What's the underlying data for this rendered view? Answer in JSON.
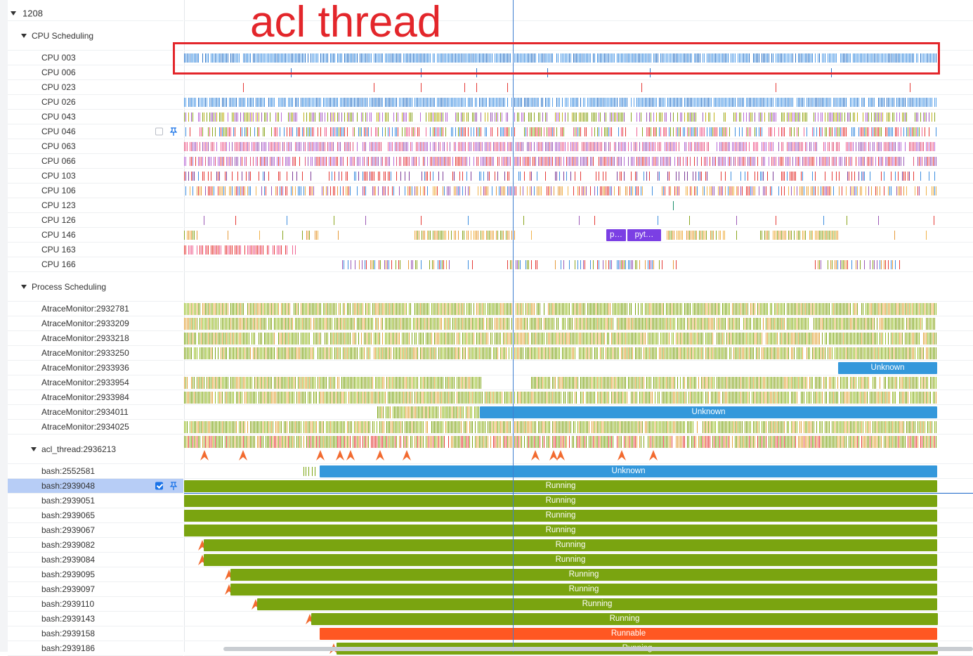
{
  "annotation": {
    "text": "acl thread",
    "color": "#e3262b"
  },
  "colors": {
    "running": "#7aa410",
    "unknown": "#3498db",
    "runnable": "#ff5722",
    "cursor": "#3f7fd0",
    "flag": "#f26a2f"
  },
  "process": {
    "name": "1208"
  },
  "cpu_section": {
    "title": "CPU Scheduling"
  },
  "cpu_rows": [
    {
      "label": "CPU 003",
      "palette": [
        "#3d8ee0",
        "#2b73c7",
        "#5aa2ea"
      ],
      "density": 0.9,
      "ranges": [
        [
          0,
          0.955
        ]
      ]
    },
    {
      "label": "CPU 006",
      "palette": [
        "#2b73c7"
      ],
      "density": 0.0,
      "ranges": [],
      "ticks": [
        0.135,
        0.3,
        0.37,
        0.46,
        0.59,
        0.82
      ]
    },
    {
      "label": "CPU 023",
      "palette": [
        "#e53935"
      ],
      "density": 0.0,
      "ranges": [],
      "ticks": [
        0.075,
        0.24,
        0.3,
        0.355,
        0.37,
        0.41,
        0.58,
        0.75,
        0.92
      ]
    },
    {
      "label": "CPU 026",
      "palette": [
        "#3d8ee0",
        "#2b73c7",
        "#5aa2ea"
      ],
      "density": 0.85,
      "ranges": [
        [
          0,
          0.955
        ]
      ]
    },
    {
      "label": "CPU 043",
      "palette": [
        "#8aa51e",
        "#9b59b6",
        "#b86ad6",
        "#8aa51e",
        "#c0b21a"
      ],
      "density": 0.6,
      "ranges": [
        [
          0,
          0.955
        ]
      ]
    },
    {
      "label": "CPU 046",
      "palette": [
        "#e53935",
        "#f06292",
        "#8aa51e",
        "#3d8ee0"
      ],
      "density": 0.6,
      "ranges": [
        [
          0,
          0.955
        ]
      ],
      "checkbox": false,
      "pinned": true
    },
    {
      "label": "CPU 063",
      "palette": [
        "#b86ad6",
        "#e2557a",
        "#9b59b6",
        "#f06292"
      ],
      "density": 0.75,
      "ranges": [
        [
          0,
          0.955
        ]
      ]
    },
    {
      "label": "CPU 066",
      "palette": [
        "#b86ad6",
        "#e53935",
        "#9b59b6",
        "#e2557a"
      ],
      "density": 0.75,
      "ranges": [
        [
          0,
          0.955
        ]
      ]
    },
    {
      "label": "CPU 103",
      "palette": [
        "#e53935",
        "#7d3c98",
        "#3d8ee0",
        "#e53935"
      ],
      "density": 0.35,
      "ranges": [
        [
          0,
          0.955
        ]
      ]
    },
    {
      "label": "CPU 106",
      "palette": [
        "#e69a3a",
        "#f0b24a",
        "#9b59b6",
        "#3d8ee0",
        "#e53935"
      ],
      "density": 0.6,
      "ranges": [
        [
          0,
          0.955
        ]
      ]
    },
    {
      "label": "CPU 123",
      "palette": [
        "#1a8f6b"
      ],
      "density": 0.0,
      "ranges": [],
      "ticks": [
        0.62
      ]
    },
    {
      "label": "CPU 126",
      "palette": [
        "#9b59b6",
        "#e53935",
        "#3d8ee0",
        "#8aa51e"
      ],
      "density": 0.0,
      "ranges": [],
      "ticks": [
        0.025,
        0.065,
        0.13,
        0.19,
        0.23,
        0.3,
        0.36,
        0.43,
        0.5,
        0.52,
        0.6,
        0.64,
        0.7,
        0.75,
        0.81,
        0.84,
        0.88,
        0.95
      ]
    },
    {
      "label": "CPU 146",
      "palette": [
        "#e69a3a",
        "#f0b24a",
        "#8aa51e"
      ],
      "density": 0.75,
      "ranges": [
        [
          0,
          0.02
        ],
        [
          0.15,
          0.17
        ],
        [
          0.29,
          0.42
        ],
        [
          0.61,
          0.69
        ],
        [
          0.73,
          0.83
        ]
      ],
      "ticks": [
        0.055,
        0.095,
        0.125,
        0.195,
        0.44,
        0.7,
        0.9,
        0.94
      ],
      "blocks": [
        {
          "label": "p…",
          "start": 0.535,
          "end": 0.56,
          "color": "#7b3fe4"
        },
        {
          "label": "pyt…",
          "start": 0.562,
          "end": 0.605,
          "color": "#7b3fe4"
        }
      ]
    },
    {
      "label": "CPU 163",
      "palette": [
        "#e53935",
        "#f06292"
      ],
      "density": 0.7,
      "ranges": [
        [
          0,
          0.142
        ]
      ]
    },
    {
      "label": "CPU 166",
      "palette": [
        "#e53935",
        "#9b59b6",
        "#3d8ee0",
        "#8aa51e",
        "#e69a3a"
      ],
      "density": 0.55,
      "ranges": [
        [
          0.195,
          0.34
        ],
        [
          0.36,
          0.37
        ],
        [
          0.41,
          0.45
        ],
        [
          0.47,
          0.61
        ],
        [
          0.62,
          0.63
        ],
        [
          0.8,
          0.91
        ]
      ]
    }
  ],
  "process_section": {
    "title": "Process Scheduling"
  },
  "process_rows": [
    {
      "label": "AtraceMonitor:2932781",
      "type": "stripes",
      "ranges": [
        [
          0,
          0.955
        ]
      ]
    },
    {
      "label": "AtraceMonitor:2933209",
      "type": "stripes",
      "ranges": [
        [
          0,
          0.955
        ]
      ]
    },
    {
      "label": "AtraceMonitor:2933218",
      "type": "stripes",
      "ranges": [
        [
          0,
          0.955
        ]
      ]
    },
    {
      "label": "AtraceMonitor:2933250",
      "type": "stripes",
      "ranges": [
        [
          0,
          0.955
        ]
      ]
    },
    {
      "label": "AtraceMonitor:2933936",
      "type": "block",
      "state": "Unknown",
      "start": 0.829,
      "end": 0.955,
      "color": "#3498db"
    },
    {
      "label": "AtraceMonitor:2933954",
      "type": "stripes",
      "ranges": [
        [
          0,
          0.378
        ],
        [
          0.44,
          0.955
        ]
      ]
    },
    {
      "label": "AtraceMonitor:2933984",
      "type": "stripes",
      "ranges": [
        [
          0,
          0.955
        ]
      ]
    },
    {
      "label": "AtraceMonitor:2934011",
      "type": "stripes_block",
      "ranges": [
        [
          0.245,
          0.375
        ]
      ],
      "state": "Unknown",
      "start": 0.375,
      "end": 0.955,
      "color": "#3498db"
    },
    {
      "label": "AtraceMonitor:2934025",
      "type": "stripes",
      "ranges": [
        [
          0,
          0.955
        ]
      ]
    }
  ],
  "acl_thread": {
    "label": "acl_thread:2936213",
    "flags": [
      0.026,
      0.075,
      0.173,
      0.198,
      0.211,
      0.248,
      0.282,
      0.445,
      0.468,
      0.477,
      0.555,
      0.595
    ]
  },
  "thread_rows": [
    {
      "label": "bash:2552581",
      "state": "Unknown",
      "start": 0.172,
      "end": 0.955,
      "color": "#3498db",
      "pre_ticks": [
        0.151,
        0.154,
        0.158,
        0.162,
        0.166
      ]
    },
    {
      "label": "bash:2939048",
      "state": "Running",
      "start": 0.0,
      "end": 0.955,
      "color": "#7aa410",
      "selected": true,
      "checkbox": true,
      "pinned": true
    },
    {
      "label": "bash:2939051",
      "state": "Running",
      "start": 0.0,
      "end": 0.955,
      "color": "#7aa410"
    },
    {
      "label": "bash:2939065",
      "state": "Running",
      "start": 0.0,
      "end": 0.955,
      "color": "#7aa410"
    },
    {
      "label": "bash:2939067",
      "state": "Running",
      "start": 0.0,
      "end": 0.955,
      "color": "#7aa410"
    },
    {
      "label": "bash:2939082",
      "state": "Running",
      "start": 0.025,
      "end": 0.955,
      "color": "#7aa410",
      "flag": 0.023
    },
    {
      "label": "bash:2939084",
      "state": "Running",
      "start": 0.025,
      "end": 0.955,
      "color": "#7aa410",
      "flag": 0.023
    },
    {
      "label": "bash:2939095",
      "state": "Running",
      "start": 0.059,
      "end": 0.955,
      "color": "#7aa410",
      "flag": 0.057
    },
    {
      "label": "bash:2939097",
      "state": "Running",
      "start": 0.059,
      "end": 0.955,
      "color": "#7aa410",
      "flag": 0.057
    },
    {
      "label": "bash:2939110",
      "state": "Running",
      "start": 0.093,
      "end": 0.955,
      "color": "#7aa410",
      "flag": 0.091
    },
    {
      "label": "bash:2939143",
      "state": "Running",
      "start": 0.161,
      "end": 0.955,
      "color": "#7aa410",
      "flag": 0.159
    },
    {
      "label": "bash:2939158",
      "state": "Runnable",
      "start": 0.172,
      "end": 0.955,
      "color": "#ff5722"
    },
    {
      "label": "bash:2939186",
      "state": "Running",
      "start": 0.193,
      "end": 0.955,
      "color": "#7aa410",
      "flag": 0.19
    }
  ]
}
